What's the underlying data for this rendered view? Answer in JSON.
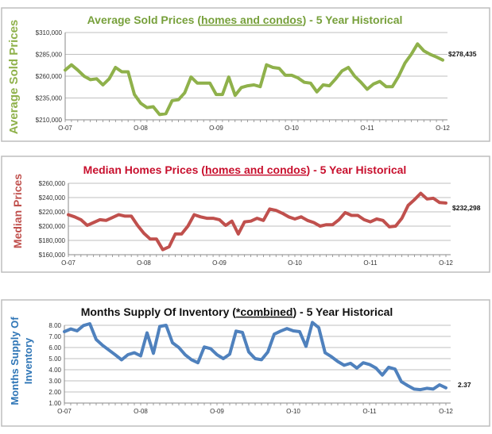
{
  "chart_data": [
    {
      "type": "line",
      "title": "Average Sold Prices (homes and condos) - 5 Year Historical",
      "title_parts": [
        "Average Sold Prices (",
        "homes and condos",
        ") - 5 Year Historical"
      ],
      "ylabel": "Average Sold Prices",
      "xlabel": "",
      "x_tick_labels": [
        "O-07",
        "O-08",
        "O-09",
        "O-10",
        "O-11",
        "O-12"
      ],
      "y_tick_labels": [
        "$210,000",
        "$235,000",
        "$260,000",
        "$285,000",
        "$310,000"
      ],
      "ylim": [
        210000,
        310000
      ],
      "grid": true,
      "color": "#8fb14b",
      "title_color": "#77a03b",
      "end_label": "$278,435",
      "values": [
        267000,
        273000,
        267000,
        260000,
        256000,
        257000,
        250000,
        257000,
        270000,
        265000,
        265000,
        239000,
        229000,
        224000,
        225000,
        216000,
        217000,
        232000,
        233000,
        241000,
        259000,
        252000,
        252000,
        252000,
        239000,
        239000,
        259000,
        238000,
        247000,
        249000,
        250000,
        248000,
        273000,
        270000,
        269000,
        261000,
        261000,
        258000,
        253000,
        252000,
        242000,
        250000,
        249000,
        257000,
        266000,
        270000,
        260000,
        253000,
        245000,
        251000,
        254000,
        248000,
        248000,
        260000,
        275000,
        285000,
        297000,
        289000,
        285000,
        282000,
        278435
      ]
    },
    {
      "type": "line",
      "title": "Median Homes Prices (homes and condos) - 5 Year Historical",
      "title_parts": [
        "Median Homes Prices (",
        "homes and condos",
        ") - 5 Year Historical"
      ],
      "ylabel": "Median Prices",
      "xlabel": "",
      "x_tick_labels": [
        "O-07",
        "O-08",
        "O-09",
        "O-10",
        "O-11",
        "O-12"
      ],
      "y_tick_labels": [
        "$160,000",
        "$180,000",
        "$200,000",
        "$220,000",
        "$240,000",
        "$260,000"
      ],
      "ylim": [
        160000,
        260000
      ],
      "grid": true,
      "color": "#c0504d",
      "title_color": "#c8102e",
      "end_label": "$232,298",
      "values": [
        216000,
        213000,
        209000,
        201000,
        205000,
        209000,
        208000,
        212000,
        216000,
        214000,
        214000,
        201000,
        190000,
        182000,
        182000,
        167000,
        171000,
        189000,
        189000,
        200000,
        216000,
        213000,
        211000,
        211000,
        209000,
        201000,
        207000,
        189000,
        206000,
        207000,
        211000,
        208000,
        224000,
        222000,
        218000,
        213000,
        210000,
        213000,
        208000,
        205000,
        200000,
        202000,
        202000,
        209000,
        219000,
        215000,
        215000,
        209000,
        206000,
        210000,
        208000,
        199000,
        200000,
        211000,
        229000,
        237000,
        246000,
        238000,
        239000,
        233000,
        232298
      ]
    },
    {
      "type": "line",
      "title": "Months Supply Of Inventory (*combined) - 5 Year Historical",
      "title_parts": [
        "Months Supply Of Inventory (",
        "*combined",
        ") - 5 Year Historical"
      ],
      "ylabel": "Months Supply Of Inventory",
      "ylabel_lines": [
        "Months Supply Of",
        "Inventory"
      ],
      "xlabel": "",
      "x_tick_labels": [
        "O-07",
        "O-08",
        "O-09",
        "O-10",
        "O-11",
        "O-12"
      ],
      "y_tick_labels": [
        "1.00",
        "2.00",
        "3.00",
        "4.00",
        "5.00",
        "6.00",
        "7.00",
        "8.00"
      ],
      "ylim": [
        1,
        8
      ],
      "grid": true,
      "color": "#4f81bd",
      "title_color": "#111111",
      "ylabel_color": "#2e75b6",
      "end_label": "2.37",
      "values": [
        7.43,
        7.67,
        7.5,
        7.98,
        8.14,
        6.72,
        6.2,
        5.77,
        5.34,
        4.89,
        5.36,
        5.53,
        5.25,
        7.32,
        5.48,
        7.9,
        8.0,
        6.43,
        6.0,
        5.34,
        4.9,
        4.63,
        6.05,
        5.9,
        5.35,
        5.0,
        5.4,
        7.48,
        7.36,
        5.6,
        5.0,
        4.9,
        5.6,
        7.2,
        7.48,
        7.71,
        7.5,
        7.43,
        6.1,
        8.26,
        7.79,
        5.53,
        5.17,
        4.74,
        4.4,
        4.58,
        4.15,
        4.63,
        4.47,
        4.15,
        3.52,
        4.22,
        4.06,
        2.92,
        2.57,
        2.26,
        2.21,
        2.33,
        2.26,
        2.64,
        2.37
      ]
    }
  ]
}
